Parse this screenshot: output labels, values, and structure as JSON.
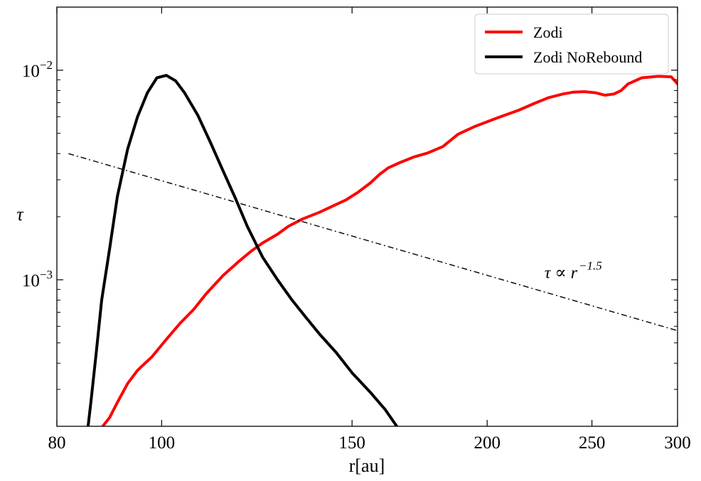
{
  "chart_data": {
    "type": "line",
    "xscale": "log",
    "yscale": "log",
    "xlim": [
      80,
      300
    ],
    "ylim": [
      0.0002,
      0.02
    ],
    "xlabel": "r[au]",
    "ylabel": "τ",
    "xticks": [
      {
        "value": 80,
        "label": "80"
      },
      {
        "value": 100,
        "label": "100"
      },
      {
        "value": 150,
        "label": "150"
      },
      {
        "value": 200,
        "label": "200"
      },
      {
        "value": 250,
        "label": "250"
      },
      {
        "value": 300,
        "label": "300"
      }
    ],
    "yticks": [
      {
        "value": 0.001,
        "base": "10",
        "exp": "−3"
      },
      {
        "value": 0.01,
        "base": "10",
        "exp": "−2"
      }
    ],
    "legend": {
      "position": "top-right"
    },
    "annotation": {
      "text": "τ ∝ r",
      "exp": "−1.5",
      "x": 226,
      "y": 0.00102
    },
    "series": [
      {
        "name": "Zodi",
        "color": "#ff0000",
        "style": "solid",
        "x": [
          88.2,
          89.5,
          91,
          93,
          95,
          98,
          101,
          104,
          107,
          110,
          114,
          118,
          121,
          124,
          128,
          131,
          135,
          140,
          144,
          148,
          152,
          156,
          159,
          162,
          166,
          171,
          176,
          182,
          188,
          195,
          204,
          214,
          222,
          228,
          235,
          240,
          246,
          252,
          257,
          262,
          266,
          270,
          278,
          288,
          296,
          300
        ],
        "y": [
          0.0002,
          0.00022,
          0.00026,
          0.00032,
          0.00037,
          0.00043,
          0.00052,
          0.00062,
          0.00072,
          0.00086,
          0.00105,
          0.00123,
          0.00137,
          0.0015,
          0.00165,
          0.0018,
          0.00195,
          0.0021,
          0.00225,
          0.0024,
          0.00262,
          0.0029,
          0.00318,
          0.00342,
          0.00362,
          0.00385,
          0.00402,
          0.00432,
          0.00495,
          0.0054,
          0.0059,
          0.00645,
          0.007,
          0.0074,
          0.0077,
          0.00785,
          0.0079,
          0.0078,
          0.0076,
          0.0077,
          0.008,
          0.0086,
          0.0092,
          0.00935,
          0.0093,
          0.0086
        ]
      },
      {
        "name": "Zodi NoRebound",
        "color": "#000000",
        "style": "solid",
        "x": [
          85.5,
          86,
          87,
          88,
          89.5,
          91,
          93,
          95,
          97,
          99,
          101,
          103,
          105,
          108,
          111,
          114,
          117,
          120,
          124,
          128,
          132,
          136,
          140,
          145,
          150,
          156,
          161,
          165
        ],
        "y": [
          0.0002,
          0.00026,
          0.00045,
          0.0008,
          0.0014,
          0.0025,
          0.0042,
          0.006,
          0.0078,
          0.0092,
          0.00945,
          0.0089,
          0.0078,
          0.0061,
          0.0045,
          0.0033,
          0.00245,
          0.0018,
          0.00128,
          0.001,
          0.0008,
          0.00066,
          0.00055,
          0.00045,
          0.00036,
          0.00029,
          0.00024,
          0.0002
        ]
      },
      {
        "name": "τ ∝ r^-1.5 reference",
        "color": "#000000",
        "style": "dashdot",
        "show_in_legend": false,
        "x": [
          82,
          300
        ],
        "y": [
          0.004,
          0.000572
        ]
      }
    ]
  }
}
